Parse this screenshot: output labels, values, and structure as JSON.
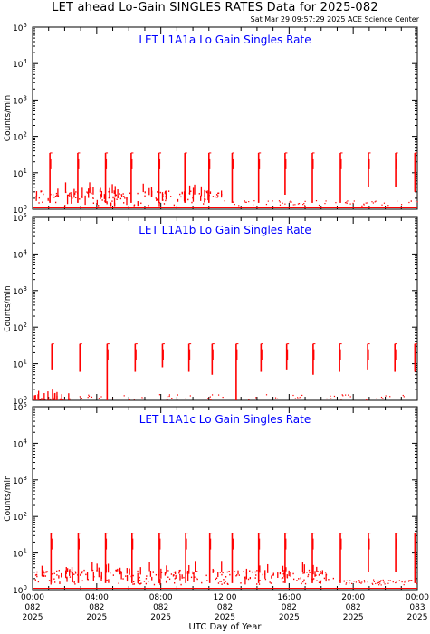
{
  "header": {
    "title": "LET ahead Lo-Gain SINGLES RATES Data for 2025-082",
    "timestamp": "Sat Mar 29 09:57:29 2025 ACE Science Center"
  },
  "colors": {
    "data": "#ff0000",
    "panel_title": "#0000ff",
    "frame": "#000000"
  },
  "chart_data": [
    {
      "type": "line",
      "title": "LET L1A1a Lo Gain Singles Rate",
      "ylabel": "Counts/min",
      "yscale": "log",
      "ylim": [
        1,
        100000
      ],
      "xlim": [
        0,
        24
      ],
      "spikes": [
        {
          "x": 1.08,
          "top": 35,
          "bottom": 1.5
        },
        {
          "x": 2.82,
          "top": 35,
          "bottom": 1.5
        },
        {
          "x": 4.55,
          "top": 35,
          "bottom": 1.5
        },
        {
          "x": 6.15,
          "top": 35,
          "bottom": 1.5
        },
        {
          "x": 7.88,
          "top": 35,
          "bottom": 1.5
        },
        {
          "x": 9.5,
          "top": 35,
          "bottom": 1.5
        },
        {
          "x": 11.0,
          "top": 35,
          "bottom": 1.5
        },
        {
          "x": 12.45,
          "top": 35,
          "bottom": 1.5
        },
        {
          "x": 14.1,
          "top": 35,
          "bottom": 1.5
        },
        {
          "x": 15.75,
          "top": 35,
          "bottom": 2.5
        },
        {
          "x": 17.45,
          "top": 35,
          "bottom": 1.5
        },
        {
          "x": 19.2,
          "top": 35,
          "bottom": 1.5
        },
        {
          "x": 20.95,
          "top": 35,
          "bottom": 4
        },
        {
          "x": 22.65,
          "top": 35,
          "bottom": 4
        },
        {
          "x": 23.85,
          "top": 35,
          "bottom": 3
        }
      ],
      "baseline_dense_until": 11.8,
      "baseline_value": 1.2
    },
    {
      "type": "line",
      "title": "LET L1A1b Lo Gain Singles Rate",
      "ylabel": "Counts/min",
      "yscale": "log",
      "ylim": [
        1,
        100000
      ],
      "xlim": [
        0,
        24
      ],
      "spikes": [
        {
          "x": 1.2,
          "top": 35,
          "bottom": 7
        },
        {
          "x": 2.95,
          "top": 35,
          "bottom": 6
        },
        {
          "x": 4.65,
          "top": 35,
          "bottom": 1
        },
        {
          "x": 6.4,
          "top": 35,
          "bottom": 6
        },
        {
          "x": 8.1,
          "top": 35,
          "bottom": 8
        },
        {
          "x": 9.75,
          "top": 35,
          "bottom": 6
        },
        {
          "x": 11.2,
          "top": 35,
          "bottom": 5
        },
        {
          "x": 12.7,
          "top": 35,
          "bottom": 1
        },
        {
          "x": 14.25,
          "top": 35,
          "bottom": 6
        },
        {
          "x": 15.85,
          "top": 35,
          "bottom": 7
        },
        {
          "x": 17.5,
          "top": 35,
          "bottom": 5
        },
        {
          "x": 19.15,
          "top": 35,
          "bottom": 6
        },
        {
          "x": 20.9,
          "top": 35,
          "bottom": 7
        },
        {
          "x": 22.6,
          "top": 35,
          "bottom": 6
        },
        {
          "x": 23.85,
          "top": 35,
          "bottom": 6
        }
      ],
      "baseline_dense_until": 2.5,
      "baseline_value": 1.0
    },
    {
      "type": "line",
      "title": "LET L1A1c Lo Gain Singles Rate",
      "ylabel": "Counts/min",
      "xlabel": "UTC Day of Year",
      "yscale": "log",
      "ylim": [
        1,
        100000
      ],
      "xlim": [
        0,
        24
      ],
      "x_ticks": [
        {
          "x": 0,
          "time": "00:00",
          "doy": "082",
          "year": "2025"
        },
        {
          "x": 4,
          "time": "04:00",
          "doy": "082",
          "year": "2025"
        },
        {
          "x": 8,
          "time": "08:00",
          "doy": "082",
          "year": "2025"
        },
        {
          "x": 12,
          "time": "12:00",
          "doy": "082",
          "year": "2025"
        },
        {
          "x": 16,
          "time": "16:00",
          "doy": "082",
          "year": "2025"
        },
        {
          "x": 20,
          "time": "20:00",
          "doy": "082",
          "year": "2025"
        },
        {
          "x": 24,
          "time": "00:00",
          "doy": "083",
          "year": "2025"
        }
      ],
      "spikes": [
        {
          "x": 1.15,
          "top": 35,
          "bottom": 1.5
        },
        {
          "x": 2.85,
          "top": 35,
          "bottom": 1.5
        },
        {
          "x": 4.55,
          "top": 35,
          "bottom": 1.5
        },
        {
          "x": 6.2,
          "top": 35,
          "bottom": 1.5
        },
        {
          "x": 7.9,
          "top": 35,
          "bottom": 1.5
        },
        {
          "x": 9.55,
          "top": 35,
          "bottom": 1.5
        },
        {
          "x": 11.05,
          "top": 35,
          "bottom": 1.5
        },
        {
          "x": 12.45,
          "top": 35,
          "bottom": 1.5
        },
        {
          "x": 14.1,
          "top": 35,
          "bottom": 1.5
        },
        {
          "x": 15.75,
          "top": 35,
          "bottom": 1.5
        },
        {
          "x": 17.45,
          "top": 35,
          "bottom": 1.5
        },
        {
          "x": 19.2,
          "top": 35,
          "bottom": 1.5
        },
        {
          "x": 20.95,
          "top": 35,
          "bottom": 3
        },
        {
          "x": 22.65,
          "top": 35,
          "bottom": 3
        },
        {
          "x": 23.85,
          "top": 35,
          "bottom": 1.5
        }
      ],
      "baseline_dense_until": 19.0,
      "baseline_value": 1.3
    }
  ],
  "y_tick_exponents": [
    "0",
    "1",
    "2",
    "3",
    "4",
    "5"
  ],
  "y_tick_base": "10"
}
